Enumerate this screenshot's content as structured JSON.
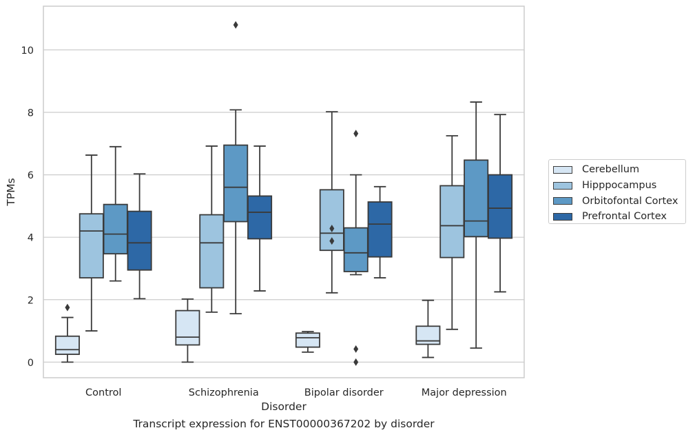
{
  "chart_data": {
    "type": "boxplot",
    "xlabel": "Disorder",
    "ylabel": "TPMs",
    "caption": "Transcript expression for ENST00000367202 by disorder",
    "ylim": [
      -0.5,
      11.4
    ],
    "yticks": [
      "0",
      "2",
      "4",
      "6",
      "8",
      "10"
    ],
    "grid": "horizontal",
    "legend_position": "right",
    "categories": [
      "Control",
      "Schizophrenia",
      "Bipolar disorder",
      "Major depression"
    ],
    "series": [
      {
        "name": "Cerebellum",
        "color": "#d6e6f4",
        "boxes": [
          {
            "whisker_low": 0.0,
            "q1": 0.25,
            "median": 0.4,
            "q3": 0.83,
            "whisker_high": 1.43,
            "outliers": [
              1.75
            ]
          },
          {
            "whisker_low": 0.0,
            "q1": 0.55,
            "median": 0.8,
            "q3": 1.65,
            "whisker_high": 2.02,
            "outliers": []
          },
          {
            "whisker_low": 0.32,
            "q1": 0.48,
            "median": 0.78,
            "q3": 0.93,
            "whisker_high": 0.98,
            "outliers": []
          },
          {
            "whisker_low": 0.15,
            "q1": 0.57,
            "median": 0.68,
            "q3": 1.15,
            "whisker_high": 1.98,
            "outliers": []
          }
        ]
      },
      {
        "name": "Hipppocampus",
        "color": "#9dc4df",
        "boxes": [
          {
            "whisker_low": 1.0,
            "q1": 2.7,
            "median": 4.2,
            "q3": 4.75,
            "whisker_high": 6.63,
            "outliers": []
          },
          {
            "whisker_low": 1.6,
            "q1": 2.38,
            "median": 3.82,
            "q3": 4.72,
            "whisker_high": 6.92,
            "outliers": []
          },
          {
            "whisker_low": 2.22,
            "q1": 3.58,
            "median": 4.13,
            "q3": 5.52,
            "whisker_high": 8.02,
            "outliers": [
              4.28,
              3.88
            ]
          },
          {
            "whisker_low": 1.05,
            "q1": 3.35,
            "median": 4.37,
            "q3": 5.65,
            "whisker_high": 7.25,
            "outliers": []
          }
        ]
      },
      {
        "name": "Orbitofontal Cortex",
        "color": "#5d99c5",
        "boxes": [
          {
            "whisker_low": 2.6,
            "q1": 3.47,
            "median": 4.1,
            "q3": 5.05,
            "whisker_high": 6.9,
            "outliers": []
          },
          {
            "whisker_low": 1.55,
            "q1": 4.5,
            "median": 5.6,
            "q3": 6.95,
            "whisker_high": 8.08,
            "outliers": [
              10.8
            ]
          },
          {
            "whisker_low": 2.8,
            "q1": 2.9,
            "median": 3.5,
            "q3": 4.3,
            "whisker_high": 6.0,
            "outliers": [
              7.32,
              0.42,
              0.0
            ]
          },
          {
            "whisker_low": 0.45,
            "q1": 4.02,
            "median": 4.52,
            "q3": 6.47,
            "whisker_high": 8.33,
            "outliers": []
          }
        ]
      },
      {
        "name": "Prefrontal Cortex",
        "color": "#2d68a6",
        "boxes": [
          {
            "whisker_low": 2.03,
            "q1": 2.95,
            "median": 3.82,
            "q3": 4.83,
            "whisker_high": 6.03,
            "outliers": []
          },
          {
            "whisker_low": 2.28,
            "q1": 3.95,
            "median": 4.8,
            "q3": 5.32,
            "whisker_high": 6.92,
            "outliers": []
          },
          {
            "whisker_low": 2.7,
            "q1": 3.37,
            "median": 4.42,
            "q3": 5.13,
            "whisker_high": 5.62,
            "outliers": []
          },
          {
            "whisker_low": 2.25,
            "q1": 3.97,
            "median": 4.93,
            "q3": 6.0,
            "whisker_high": 7.93,
            "outliers": []
          }
        ]
      }
    ]
  }
}
